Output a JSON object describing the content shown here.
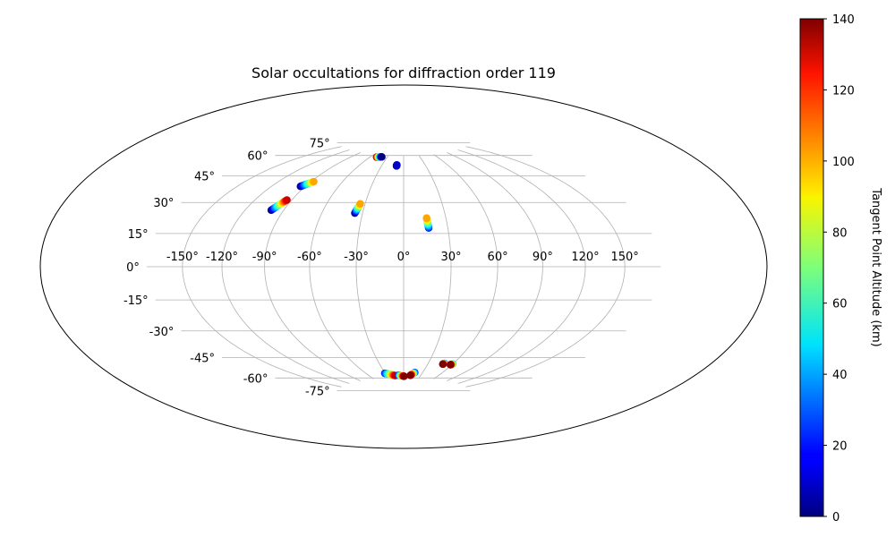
{
  "chart_data": {
    "type": "scatter",
    "projection": "hammer",
    "title": "Solar occultations for diffraction order 119",
    "grid": true,
    "lon_ticks": [
      "-150°",
      "-120°",
      "-90°",
      "-60°",
      "-30°",
      "0°",
      "30°",
      "60°",
      "90°",
      "120°",
      "150°"
    ],
    "lon_tick_values": [
      -150,
      -120,
      -90,
      -60,
      -30,
      0,
      30,
      60,
      90,
      120,
      150
    ],
    "lat_ticks": [
      "75°",
      "60°",
      "45°",
      "30°",
      "15°",
      "0°",
      "-15°",
      "-30°",
      "-45°",
      "-60°",
      "-75°"
    ],
    "lat_tick_values": [
      75,
      60,
      45,
      30,
      15,
      0,
      -15,
      -30,
      -45,
      -60,
      -75
    ],
    "colorbar": {
      "label": "Tangent Point Altitude (km)",
      "colormap": "jet",
      "range": [
        0,
        140
      ],
      "ticks": [
        "0",
        "20",
        "40",
        "60",
        "80",
        "100",
        "120",
        "140"
      ],
      "tick_values": [
        0,
        20,
        40,
        60,
        80,
        100,
        120,
        140
      ]
    },
    "series": [
      {
        "lon_start": -48.6,
        "lat_start": 73.3,
        "lon_end": -39.9,
        "lat_end": 73.8,
        "alt_start": 140,
        "alt_end": 0
      },
      {
        "lon_start": -9.7,
        "lat_start": 67.3,
        "lon_end": -9.5,
        "lat_end": 68.1,
        "alt_start": 0,
        "alt_end": 10
      },
      {
        "lon_start": -94.4,
        "lat_start": 48.8,
        "lon_end": -87.4,
        "lat_end": 52.6,
        "alt_start": 0,
        "alt_end": 100
      },
      {
        "lon_start": -99.6,
        "lat_start": 33.1,
        "lon_end": -93.9,
        "lat_end": 39.9,
        "alt_start": 0,
        "alt_end": 130
      },
      {
        "lon_start": -35.7,
        "lat_start": 33.9,
        "lon_end": -33.8,
        "lat_end": 40.1,
        "alt_start": 0,
        "alt_end": 100
      },
      {
        "lon_start": 17.0,
        "lat_start": 24.5,
        "lon_end": 16.3,
        "lat_end": 31.0,
        "alt_start": 20,
        "alt_end": 100
      },
      {
        "lon_start": -30.7,
        "lat_start": -71.5,
        "lon_end": -14.9,
        "lat_end": -73.6,
        "alt_start": 20,
        "alt_end": 130
      },
      {
        "lon_start": -8.8,
        "lat_start": -73.3,
        "lon_end": 0.9,
        "lat_end": -74.2,
        "alt_start": 20,
        "alt_end": 140
      },
      {
        "lon_start": 17.6,
        "lat_start": -71.1,
        "lon_end": 11.9,
        "lat_end": -73.4,
        "alt_start": 20,
        "alt_end": 140
      },
      {
        "lon_start": 49.5,
        "lat_start": -63.3,
        "lon_end": 48.4,
        "lat_end": -63.9,
        "alt_start": 20,
        "alt_end": 140
      },
      {
        "lon_start": 59.9,
        "lat_start": -63.2,
        "lon_end": 58.2,
        "lat_end": -63.9,
        "alt_start": 40,
        "alt_end": 140
      }
    ]
  }
}
